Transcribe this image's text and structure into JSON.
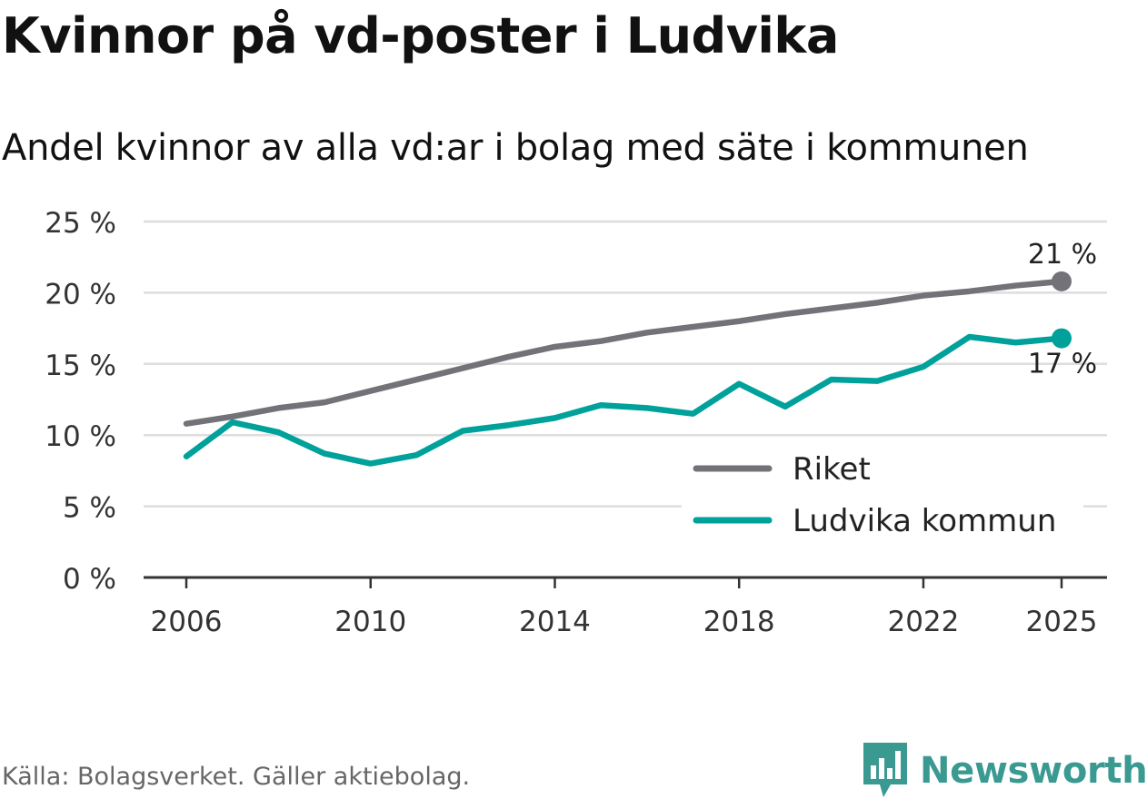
{
  "title": "Kvinnor på vd-poster i Ludvika",
  "subtitle": "Andel kvinnor av alla vd:ar i bolag med säte i kommunen",
  "source": "Källa: Bolagsverket. Gäller aktiebolag.",
  "brand": {
    "name": "Newsworthy",
    "icon": "newsworthy-logo-icon",
    "color": "#3a9a92"
  },
  "chart_data": {
    "type": "line",
    "title": "Kvinnor på vd-poster i Ludvika",
    "subtitle": "Andel kvinnor av alla vd:ar i bolag med säte i kommunen",
    "xlabel": "",
    "ylabel": "",
    "x": [
      2006,
      2007,
      2008,
      2009,
      2010,
      2011,
      2012,
      2013,
      2014,
      2015,
      2016,
      2017,
      2018,
      2019,
      2020,
      2021,
      2022,
      2023,
      2024,
      2025
    ],
    "xlim": [
      2006,
      2025
    ],
    "ylim": [
      0,
      25
    ],
    "x_ticks": [
      2006,
      2010,
      2014,
      2018,
      2022,
      2025
    ],
    "x_tick_labels": [
      "2006",
      "2010",
      "2014",
      "2018",
      "2022",
      "2025"
    ],
    "y_ticks": [
      0,
      5,
      10,
      15,
      20,
      25
    ],
    "y_tick_labels": [
      "0 %",
      "5 %",
      "10 %",
      "15 %",
      "20 %",
      "25 %"
    ],
    "grid": true,
    "legend_position": "bottom-right",
    "series": [
      {
        "name": "Riket",
        "color": "#737278",
        "values": [
          10.8,
          11.3,
          11.9,
          12.3,
          13.1,
          13.9,
          14.7,
          15.5,
          16.2,
          16.6,
          17.2,
          17.6,
          18.0,
          18.5,
          18.9,
          19.3,
          19.8,
          20.1,
          20.5,
          20.8
        ],
        "end_label": "21 %"
      },
      {
        "name": "Ludvika kommun",
        "color": "#00a19a",
        "values": [
          8.5,
          10.9,
          10.2,
          8.7,
          8.0,
          8.6,
          10.3,
          10.7,
          11.2,
          12.1,
          11.9,
          11.5,
          13.6,
          12.0,
          13.9,
          13.8,
          14.8,
          16.9,
          16.5,
          16.8
        ],
        "end_label": "17 %"
      }
    ]
  }
}
